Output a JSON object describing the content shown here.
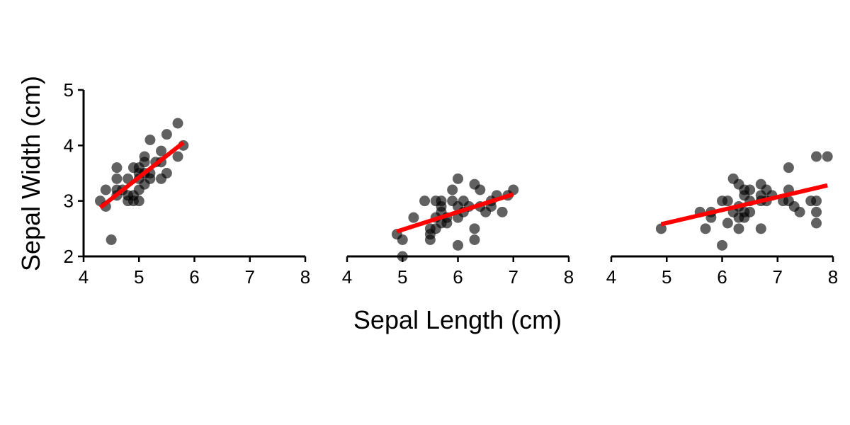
{
  "chart_data": {
    "type": "scatter",
    "xlabel": "Sepal Length (cm)",
    "ylabel": "Sepal Width (cm)",
    "xlim": [
      4,
      8
    ],
    "ylim": [
      2,
      5
    ],
    "xticks": [
      4,
      5,
      6,
      7,
      8
    ],
    "yticks": [
      2,
      3,
      4,
      5
    ],
    "grid": false,
    "point_color": "#000000",
    "fit_color": "#ff0000",
    "panels": [
      {
        "points": [
          [
            4.3,
            3.0
          ],
          [
            4.4,
            2.9
          ],
          [
            4.4,
            3.2
          ],
          [
            4.5,
            2.3
          ],
          [
            4.6,
            3.1
          ],
          [
            4.6,
            3.2
          ],
          [
            4.6,
            3.4
          ],
          [
            4.6,
            3.6
          ],
          [
            4.7,
            3.2
          ],
          [
            4.8,
            3.0
          ],
          [
            4.8,
            3.1
          ],
          [
            4.8,
            3.4
          ],
          [
            4.9,
            3.0
          ],
          [
            4.9,
            3.1
          ],
          [
            4.9,
            3.6
          ],
          [
            5.0,
            3.0
          ],
          [
            5.0,
            3.2
          ],
          [
            5.0,
            3.4
          ],
          [
            5.0,
            3.5
          ],
          [
            5.0,
            3.6
          ],
          [
            5.1,
            3.3
          ],
          [
            5.1,
            3.5
          ],
          [
            5.1,
            3.7
          ],
          [
            5.1,
            3.8
          ],
          [
            5.2,
            3.4
          ],
          [
            5.2,
            3.5
          ],
          [
            5.2,
            4.1
          ],
          [
            5.3,
            3.7
          ],
          [
            5.4,
            3.4
          ],
          [
            5.4,
            3.7
          ],
          [
            5.4,
            3.9
          ],
          [
            5.5,
            3.5
          ],
          [
            5.5,
            4.2
          ],
          [
            5.7,
            3.8
          ],
          [
            5.7,
            4.4
          ],
          [
            5.8,
            4.0
          ]
        ],
        "fit": [
          [
            4.3,
            2.88
          ],
          [
            5.8,
            4.05
          ]
        ]
      },
      {
        "points": [
          [
            4.9,
            2.4
          ],
          [
            5.0,
            2.0
          ],
          [
            5.0,
            2.3
          ],
          [
            5.2,
            2.7
          ],
          [
            5.4,
            3.0
          ],
          [
            5.5,
            2.3
          ],
          [
            5.5,
            2.4
          ],
          [
            5.5,
            2.5
          ],
          [
            5.6,
            2.5
          ],
          [
            5.6,
            2.7
          ],
          [
            5.6,
            3.0
          ],
          [
            5.7,
            2.6
          ],
          [
            5.7,
            2.8
          ],
          [
            5.7,
            2.9
          ],
          [
            5.7,
            3.0
          ],
          [
            5.8,
            2.6
          ],
          [
            5.8,
            2.7
          ],
          [
            5.9,
            3.0
          ],
          [
            5.9,
            3.2
          ],
          [
            6.0,
            2.2
          ],
          [
            6.0,
            2.7
          ],
          [
            6.0,
            2.9
          ],
          [
            6.0,
            3.4
          ],
          [
            6.1,
            2.8
          ],
          [
            6.1,
            3.0
          ],
          [
            6.2,
            2.9
          ],
          [
            6.3,
            2.3
          ],
          [
            6.3,
            2.5
          ],
          [
            6.3,
            3.3
          ],
          [
            6.4,
            2.9
          ],
          [
            6.4,
            3.2
          ],
          [
            6.5,
            2.8
          ],
          [
            6.6,
            2.9
          ],
          [
            6.6,
            3.0
          ],
          [
            6.7,
            3.1
          ],
          [
            6.8,
            2.8
          ],
          [
            6.9,
            3.1
          ],
          [
            7.0,
            3.2
          ]
        ],
        "fit": [
          [
            4.9,
            2.45
          ],
          [
            7.0,
            3.12
          ]
        ]
      },
      {
        "points": [
          [
            4.9,
            2.5
          ],
          [
            5.6,
            2.8
          ],
          [
            5.7,
            2.5
          ],
          [
            5.8,
            2.7
          ],
          [
            5.8,
            2.8
          ],
          [
            6.0,
            2.2
          ],
          [
            6.0,
            3.0
          ],
          [
            6.1,
            2.6
          ],
          [
            6.1,
            3.0
          ],
          [
            6.2,
            2.8
          ],
          [
            6.2,
            3.4
          ],
          [
            6.3,
            2.5
          ],
          [
            6.3,
            2.7
          ],
          [
            6.3,
            2.9
          ],
          [
            6.3,
            3.3
          ],
          [
            6.4,
            2.7
          ],
          [
            6.4,
            2.8
          ],
          [
            6.4,
            3.1
          ],
          [
            6.4,
            3.2
          ],
          [
            6.5,
            2.8
          ],
          [
            6.5,
            3.0
          ],
          [
            6.5,
            3.2
          ],
          [
            6.7,
            2.5
          ],
          [
            6.7,
            3.0
          ],
          [
            6.7,
            3.1
          ],
          [
            6.7,
            3.3
          ],
          [
            6.8,
            3.0
          ],
          [
            6.8,
            3.2
          ],
          [
            6.9,
            3.1
          ],
          [
            7.1,
            3.0
          ],
          [
            7.2,
            3.0
          ],
          [
            7.2,
            3.2
          ],
          [
            7.2,
            3.6
          ],
          [
            7.3,
            2.9
          ],
          [
            7.4,
            2.8
          ],
          [
            7.6,
            3.0
          ],
          [
            7.7,
            2.6
          ],
          [
            7.7,
            2.8
          ],
          [
            7.7,
            3.0
          ],
          [
            7.7,
            3.8
          ],
          [
            7.9,
            3.8
          ]
        ],
        "fit": [
          [
            4.9,
            2.58
          ],
          [
            7.9,
            3.28
          ]
        ]
      }
    ]
  }
}
